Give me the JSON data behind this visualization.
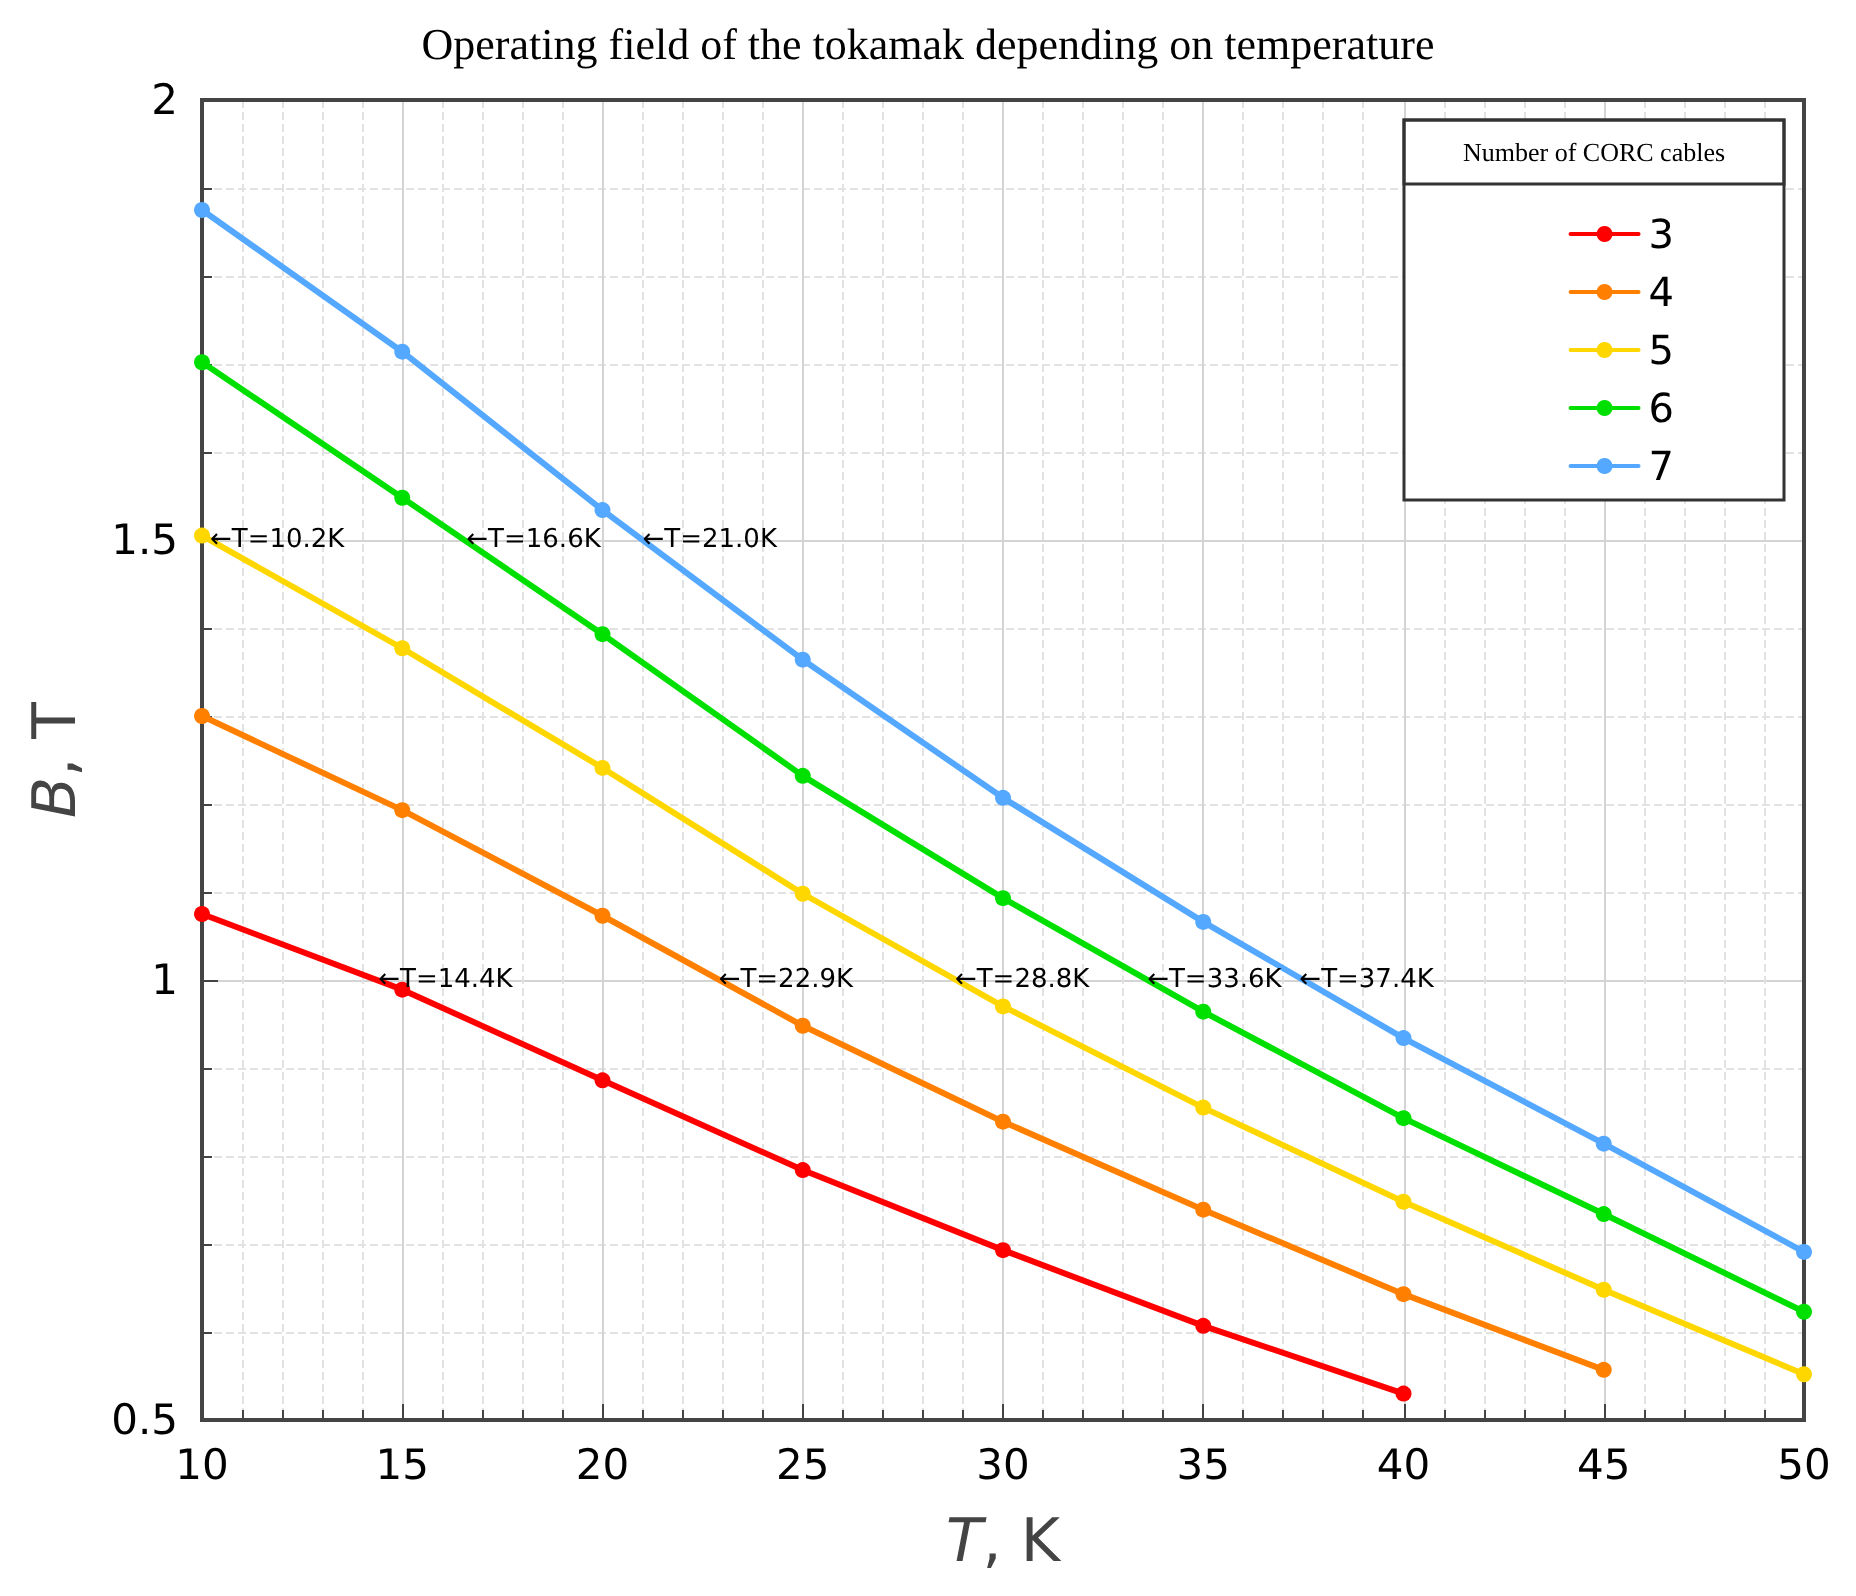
{
  "chart_data": {
    "type": "line",
    "title": "Operating field of the tokamak depending on temperature",
    "xlabel": "T, K",
    "ylabel": "B, T",
    "legend_title": "Number of CORC cables",
    "legend": "top right",
    "grid": true,
    "marker": "circle",
    "line_style": "solid",
    "x": [
      10,
      15,
      20,
      25,
      30,
      35,
      40,
      45,
      50
    ],
    "xlim": [
      10,
      50
    ],
    "xticks": [
      10,
      15,
      20,
      25,
      30,
      35,
      40,
      45,
      50
    ],
    "ylim": [
      0.5,
      2
    ],
    "yticks": [
      0.5,
      1,
      1.5,
      2
    ],
    "series": [
      {
        "name": "3",
        "color": "#ff0000",
        "values": [
          1.075,
          0.989,
          0.886,
          0.784,
          0.693,
          0.607,
          0.53,
          null,
          null
        ]
      },
      {
        "name": "4",
        "color": "#ff8000",
        "values": [
          1.3,
          1.193,
          1.073,
          0.948,
          0.839,
          0.739,
          0.643,
          0.557,
          null
        ]
      },
      {
        "name": "5",
        "color": "#ffd700",
        "values": [
          1.505,
          1.377,
          1.241,
          1.098,
          0.97,
          0.855,
          0.748,
          0.648,
          0.552
        ]
      },
      {
        "name": "6",
        "color": "#00e000",
        "values": [
          1.702,
          1.548,
          1.393,
          1.232,
          1.093,
          0.964,
          0.843,
          0.734,
          0.623
        ]
      },
      {
        "name": "7",
        "color": "#55a8ff",
        "values": [
          1.875,
          1.714,
          1.534,
          1.364,
          1.207,
          1.066,
          0.934,
          0.814,
          0.691
        ]
      }
    ],
    "annotations": [
      {
        "text": "←T=10.2K",
        "x": 10.2,
        "y": 1.5
      },
      {
        "text": "←T=16.6K",
        "x": 16.6,
        "y": 1.5
      },
      {
        "text": "←T=21.0K",
        "x": 21.0,
        "y": 1.5
      },
      {
        "text": "←T=14.4K",
        "x": 14.4,
        "y": 1
      },
      {
        "text": "←T=22.9K",
        "x": 22.9,
        "y": 1
      },
      {
        "text": "←T=28.8K",
        "x": 28.8,
        "y": 1
      },
      {
        "text": "←T=33.6K",
        "x": 33.6,
        "y": 1
      },
      {
        "text": "←T=37.4K",
        "x": 37.4,
        "y": 1
      }
    ]
  }
}
